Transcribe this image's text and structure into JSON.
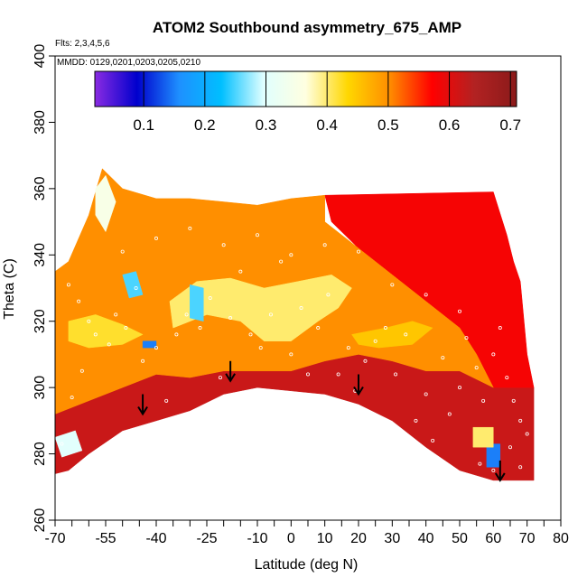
{
  "chart_data": {
    "type": "heatmap",
    "title": "ATOM2 Southbound asymmetry_675_AMP",
    "annotations": {
      "flights": "Flts: 2,3,4,5,6",
      "dates": "MMDD: 0129,0201,0203,0205,0210"
    },
    "xlabel": "Latitude (deg N)",
    "ylabel": "Theta (C)",
    "xlim": [
      -70,
      80
    ],
    "ylim": [
      260,
      400
    ],
    "x_ticks": [
      -70,
      -65,
      -60,
      -55,
      -50,
      -45,
      -40,
      -35,
      -30,
      -25,
      -20,
      -15,
      -10,
      -5,
      0,
      5,
      10,
      15,
      20,
      25,
      30,
      35,
      40,
      45,
      50,
      55,
      60,
      65,
      70,
      75,
      80
    ],
    "x_tick_labels": [
      "-70",
      "",
      "",
      "-55",
      "",
      "",
      "-40",
      "",
      "",
      "-25",
      "",
      "",
      "-10",
      "",
      "0",
      "",
      "10",
      "",
      "20",
      "",
      "30",
      "",
      "40",
      "",
      "50",
      "",
      "60",
      "",
      "70",
      "",
      "80"
    ],
    "y_ticks": [
      260,
      280,
      300,
      320,
      340,
      360,
      380,
      400
    ],
    "y_tick_labels": [
      "260",
      "280",
      "300",
      "320",
      "340",
      "360",
      "380",
      "400"
    ],
    "colorbar": {
      "range": [
        0.02,
        0.71
      ],
      "ticks": [
        0.1,
        0.2,
        0.3,
        0.4,
        0.5,
        0.6,
        0.7
      ],
      "tick_labels": [
        "0.1",
        "0.2",
        "0.3",
        "0.4",
        "0.5",
        "0.6",
        "0.7"
      ],
      "colors": [
        "#8a2be2",
        "#0000cd",
        "#1e90ff",
        "#00bfff",
        "#e0ffff",
        "#ffffe0",
        "#ffd700",
        "#ff8c00",
        "#ff0000",
        "#b22222",
        "#8b1a1a"
      ]
    },
    "data_coverage": {
      "upper_boundary": [
        [
          -70,
          335
        ],
        [
          -66,
          338
        ],
        [
          -60,
          352
        ],
        [
          -56,
          366
        ],
        [
          -54,
          363
        ],
        [
          -50,
          360
        ],
        [
          -45,
          358
        ],
        [
          -40,
          357
        ],
        [
          -30,
          357
        ],
        [
          -20,
          356
        ],
        [
          -10,
          355
        ],
        [
          0,
          357
        ],
        [
          10,
          358
        ],
        [
          20,
          358
        ],
        [
          30,
          358
        ],
        [
          40,
          359
        ],
        [
          50,
          359
        ],
        [
          60,
          359
        ],
        [
          64,
          346
        ],
        [
          66,
          338
        ],
        [
          68,
          332
        ],
        [
          70,
          310
        ],
        [
          72,
          280
        ],
        [
          72,
          272
        ]
      ],
      "lower_boundary": [
        [
          72,
          272
        ],
        [
          60,
          272
        ],
        [
          50,
          275
        ],
        [
          40,
          282
        ],
        [
          30,
          290
        ],
        [
          20,
          295
        ],
        [
          10,
          298
        ],
        [
          0,
          299
        ],
        [
          -10,
          300
        ],
        [
          -20,
          298
        ],
        [
          -30,
          293
        ],
        [
          -40,
          290
        ],
        [
          -50,
          287
        ],
        [
          -60,
          280
        ],
        [
          -66,
          275
        ],
        [
          -70,
          274
        ]
      ]
    },
    "field_regions": [
      {
        "level": 0.62,
        "points": [
          [
            -70,
            274
          ],
          [
            -66,
            275
          ],
          [
            -60,
            280
          ],
          [
            -50,
            287
          ],
          [
            -40,
            290
          ],
          [
            -30,
            293
          ],
          [
            -20,
            298
          ],
          [
            -10,
            300
          ],
          [
            0,
            299
          ],
          [
            10,
            298
          ],
          [
            20,
            295
          ],
          [
            30,
            290
          ],
          [
            40,
            282
          ],
          [
            50,
            275
          ],
          [
            60,
            272
          ],
          [
            72,
            272
          ],
          [
            72,
            300
          ],
          [
            60,
            300
          ],
          [
            50,
            305
          ],
          [
            40,
            305
          ],
          [
            30,
            308
          ],
          [
            20,
            310
          ],
          [
            10,
            308
          ],
          [
            0,
            305
          ],
          [
            -10,
            305
          ],
          [
            -20,
            305
          ],
          [
            -30,
            303
          ],
          [
            -40,
            304
          ],
          [
            -50,
            300
          ],
          [
            -60,
            296
          ],
          [
            -70,
            292
          ]
        ]
      },
      {
        "level": 0.58,
        "points": [
          [
            10,
            358
          ],
          [
            60,
            359
          ],
          [
            64,
            346
          ],
          [
            66,
            338
          ],
          [
            68,
            332
          ],
          [
            70,
            310
          ],
          [
            72,
            300
          ],
          [
            60,
            300
          ],
          [
            55,
            310
          ],
          [
            50,
            318
          ],
          [
            45,
            322
          ],
          [
            40,
            326
          ],
          [
            30,
            334
          ],
          [
            20,
            342
          ],
          [
            12,
            350
          ]
        ]
      },
      {
        "level": 0.5,
        "points": [
          [
            -70,
            292
          ],
          [
            -60,
            296
          ],
          [
            -50,
            300
          ],
          [
            -40,
            304
          ],
          [
            -30,
            303
          ],
          [
            -20,
            305
          ],
          [
            -10,
            305
          ],
          [
            0,
            305
          ],
          [
            10,
            308
          ],
          [
            20,
            310
          ],
          [
            30,
            308
          ],
          [
            40,
            305
          ],
          [
            50,
            305
          ],
          [
            60,
            300
          ],
          [
            55,
            310
          ],
          [
            50,
            318
          ],
          [
            40,
            326
          ],
          [
            30,
            334
          ],
          [
            20,
            342
          ],
          [
            10,
            350
          ],
          [
            10,
            358
          ],
          [
            0,
            357
          ],
          [
            -10,
            355
          ],
          [
            -20,
            356
          ],
          [
            -30,
            357
          ],
          [
            -40,
            357
          ],
          [
            -50,
            360
          ],
          [
            -56,
            366
          ],
          [
            -60,
            352
          ],
          [
            -66,
            338
          ],
          [
            -70,
            335
          ]
        ]
      },
      {
        "level": 0.4,
        "points": [
          [
            -35,
            318
          ],
          [
            -25,
            322
          ],
          [
            -15,
            320
          ],
          [
            -8,
            314
          ],
          [
            0,
            314
          ],
          [
            8,
            320
          ],
          [
            14,
            324
          ],
          [
            18,
            330
          ],
          [
            12,
            334
          ],
          [
            2,
            332
          ],
          [
            -8,
            330
          ],
          [
            -18,
            333
          ],
          [
            -28,
            332
          ],
          [
            -36,
            326
          ]
        ]
      },
      {
        "level": 0.42,
        "points": [
          [
            -66,
            320
          ],
          [
            -58,
            322
          ],
          [
            -50,
            319
          ],
          [
            -44,
            316
          ],
          [
            -50,
            313
          ],
          [
            -60,
            312
          ],
          [
            -66,
            314
          ]
        ]
      },
      {
        "level": 0.45,
        "points": [
          [
            18,
            316
          ],
          [
            28,
            318
          ],
          [
            36,
            320
          ],
          [
            42,
            318
          ],
          [
            36,
            313
          ],
          [
            26,
            312
          ],
          [
            20,
            313
          ]
        ]
      },
      {
        "level": 0.35,
        "points": [
          [
            -58,
            360
          ],
          [
            -55,
            364
          ],
          [
            -52,
            356
          ],
          [
            -55,
            347
          ],
          [
            -58,
            352
          ]
        ]
      },
      {
        "level": 0.3,
        "points": [
          [
            -70,
            285
          ],
          [
            -64,
            287
          ],
          [
            -62,
            281
          ],
          [
            -68,
            279
          ]
        ]
      },
      {
        "level": 0.25,
        "points": [
          [
            -50,
            334
          ],
          [
            -46,
            335
          ],
          [
            -44,
            328
          ],
          [
            -48,
            327
          ]
        ]
      },
      {
        "level": 0.25,
        "points": [
          [
            -30,
            331
          ],
          [
            -26,
            330
          ],
          [
            -26,
            320
          ],
          [
            -30,
            321
          ]
        ]
      },
      {
        "level": 0.15,
        "points": [
          [
            -44,
            314
          ],
          [
            -40,
            314
          ],
          [
            -40,
            312
          ],
          [
            -44,
            312
          ]
        ]
      },
      {
        "level": 0.15,
        "points": [
          [
            58,
            276
          ],
          [
            62,
            276
          ],
          [
            62,
            283
          ],
          [
            58,
            283
          ]
        ]
      },
      {
        "level": 0.4,
        "points": [
          [
            54,
            282
          ],
          [
            60,
            282
          ],
          [
            60,
            288
          ],
          [
            54,
            288
          ]
        ]
      }
    ],
    "observation_points": [
      [
        -66,
        331
      ],
      [
        -63,
        326
      ],
      [
        -60,
        320
      ],
      [
        -58,
        316
      ],
      [
        -54,
        313
      ],
      [
        -52,
        322
      ],
      [
        -49,
        318
      ],
      [
        -46,
        330
      ],
      [
        -44,
        308
      ],
      [
        -40,
        312
      ],
      [
        -37,
        296
      ],
      [
        -34,
        316
      ],
      [
        -31,
        322
      ],
      [
        -27,
        318
      ],
      [
        -24,
        327
      ],
      [
        -21,
        303
      ],
      [
        -18,
        321
      ],
      [
        -15,
        335
      ],
      [
        -12,
        316
      ],
      [
        -9,
        312
      ],
      [
        -6,
        322
      ],
      [
        -3,
        338
      ],
      [
        0,
        310
      ],
      [
        3,
        324
      ],
      [
        5,
        304
      ],
      [
        8,
        318
      ],
      [
        11,
        328
      ],
      [
        14,
        304
      ],
      [
        17,
        312
      ],
      [
        19,
        299
      ],
      [
        22,
        308
      ],
      [
        25,
        314
      ],
      [
        28,
        318
      ],
      [
        31,
        304
      ],
      [
        34,
        316
      ],
      [
        37,
        290
      ],
      [
        40,
        298
      ],
      [
        42,
        284
      ],
      [
        45,
        309
      ],
      [
        47,
        292
      ],
      [
        50,
        300
      ],
      [
        52,
        315
      ],
      [
        55,
        306
      ],
      [
        57,
        296
      ],
      [
        60,
        310
      ],
      [
        62,
        318
      ],
      [
        64,
        303
      ],
      [
        66,
        296
      ],
      [
        68,
        290
      ],
      [
        70,
        286
      ],
      [
        -68,
        283
      ],
      [
        -65,
        297
      ],
      [
        -62,
        305
      ],
      [
        -50,
        341
      ],
      [
        -40,
        345
      ],
      [
        -30,
        348
      ],
      [
        -20,
        343
      ],
      [
        -10,
        346
      ],
      [
        0,
        340
      ],
      [
        10,
        343
      ],
      [
        20,
        341
      ],
      [
        30,
        331
      ],
      [
        40,
        328
      ],
      [
        50,
        323
      ],
      [
        56,
        277
      ],
      [
        60,
        275
      ],
      [
        65,
        282
      ],
      [
        68,
        276
      ]
    ],
    "arrows": [
      {
        "lat": -44,
        "theta": 292
      },
      {
        "lat": -18,
        "theta": 302
      },
      {
        "lat": 20,
        "theta": 298
      },
      {
        "lat": 62,
        "theta": 272
      }
    ]
  }
}
